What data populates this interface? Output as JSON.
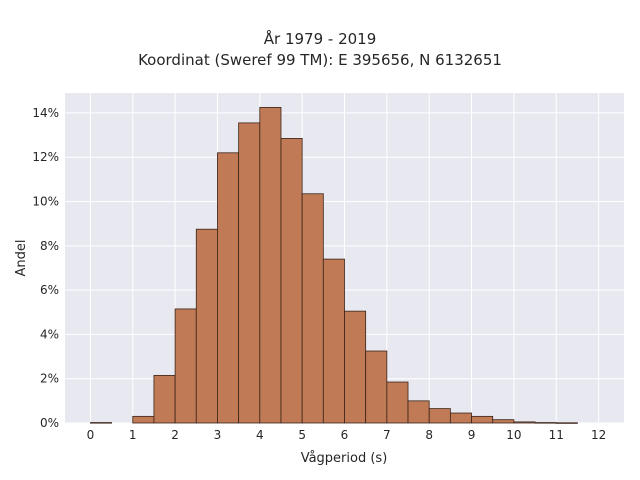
{
  "chart_data": {
    "type": "bar",
    "title": "År 1979 - 2019",
    "subtitle": "Koordinat (Sweref 99 TM): E 395656, N 6132651",
    "xlabel": "Vågperiod (s)",
    "ylabel": "Andel",
    "x_ticks": [
      "0",
      "1",
      "2",
      "3",
      "4",
      "5",
      "6",
      "7",
      "8",
      "9",
      "10",
      "11",
      "12"
    ],
    "y_ticks": [
      "0%",
      "2%",
      "4%",
      "6%",
      "8%",
      "10%",
      "12%",
      "14%"
    ],
    "xlim": [
      -0.6,
      12.6
    ],
    "ylim": [
      0,
      14.9
    ],
    "bin_width": 0.5,
    "bins": [
      {
        "x0": 0.0,
        "value": 0.02
      },
      {
        "x0": 0.5,
        "value": 0.0
      },
      {
        "x0": 1.0,
        "value": 0.3
      },
      {
        "x0": 1.5,
        "value": 2.15
      },
      {
        "x0": 2.0,
        "value": 5.15
      },
      {
        "x0": 2.5,
        "value": 8.75
      },
      {
        "x0": 3.0,
        "value": 12.2
      },
      {
        "x0": 3.5,
        "value": 13.55
      },
      {
        "x0": 4.0,
        "value": 14.25
      },
      {
        "x0": 4.5,
        "value": 12.85
      },
      {
        "x0": 5.0,
        "value": 10.35
      },
      {
        "x0": 5.5,
        "value": 7.4
      },
      {
        "x0": 6.0,
        "value": 5.05
      },
      {
        "x0": 6.5,
        "value": 3.25
      },
      {
        "x0": 7.0,
        "value": 1.85
      },
      {
        "x0": 7.5,
        "value": 1.0
      },
      {
        "x0": 8.0,
        "value": 0.65
      },
      {
        "x0": 8.5,
        "value": 0.45
      },
      {
        "x0": 9.0,
        "value": 0.3
      },
      {
        "x0": 9.5,
        "value": 0.15
      },
      {
        "x0": 10.0,
        "value": 0.05
      },
      {
        "x0": 10.5,
        "value": 0.02
      },
      {
        "x0": 11.0,
        "value": 0.01
      }
    ],
    "grid": true,
    "colors": {
      "bar_fill": "#c07a55",
      "bar_edge": "#3a2418",
      "plot_bg": "#e8e8f1",
      "grid": "#ffffff"
    }
  }
}
